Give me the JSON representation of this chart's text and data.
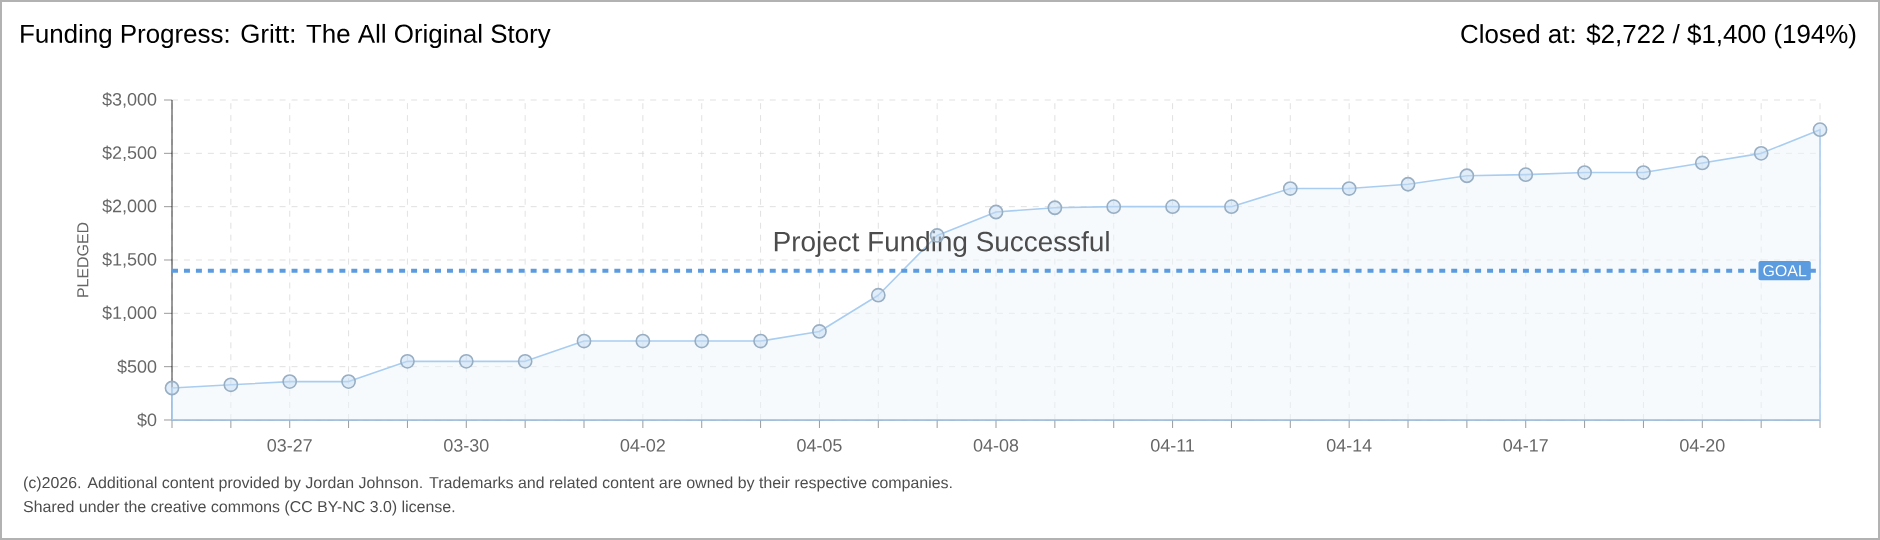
{
  "chart_data": {
    "type": "area",
    "title": "Funding Progress: Gritt: The All Original Story",
    "subtitle": "Closed at: $2,722 / $1,400 (194%)",
    "ylabel": "PLEDGED",
    "categories": [
      null,
      null,
      "03-27",
      null,
      null,
      "03-30",
      null,
      null,
      "04-02",
      null,
      null,
      "04-05",
      null,
      null,
      "04-08",
      null,
      null,
      "04-11",
      null,
      null,
      "04-14",
      null,
      null,
      "04-17",
      null,
      null,
      "04-20",
      null,
      null
    ],
    "values": [
      300,
      330,
      360,
      360,
      550,
      550,
      550,
      740,
      740,
      740,
      740,
      830,
      1170,
      1730,
      1950,
      1990,
      2000,
      2000,
      2000,
      2170,
      2170,
      2210,
      2290,
      2300,
      2320,
      2320,
      2410,
      2500,
      2722
    ],
    "color": "#a9cdf0",
    "ylim": [
      0,
      3000
    ],
    "yticks": [
      {
        "value": 0,
        "label": "$0"
      },
      {
        "value": 500,
        "label": "$500"
      },
      {
        "value": 1000,
        "label": "$1,000"
      },
      {
        "value": 1500,
        "label": "$1,500"
      },
      {
        "value": 2000,
        "label": "$2,000"
      },
      {
        "value": 2500,
        "label": "$2,500"
      },
      {
        "value": 3000,
        "label": "$3,000"
      }
    ],
    "grid": true,
    "marker": "circle",
    "ref_lines": [
      {
        "axis": "y",
        "value": 1400,
        "label": "GOAL",
        "color": "#5b9be0",
        "line_style": "dashed"
      }
    ],
    "annotations": [
      "Project Funding Successful",
      "(c)2026. Additional content provided by Jordan Johnson. Trademarks and related content are owned by their respective companies.",
      "Shared under the creative commons (CC BY-NC 3.0) license."
    ]
  }
}
